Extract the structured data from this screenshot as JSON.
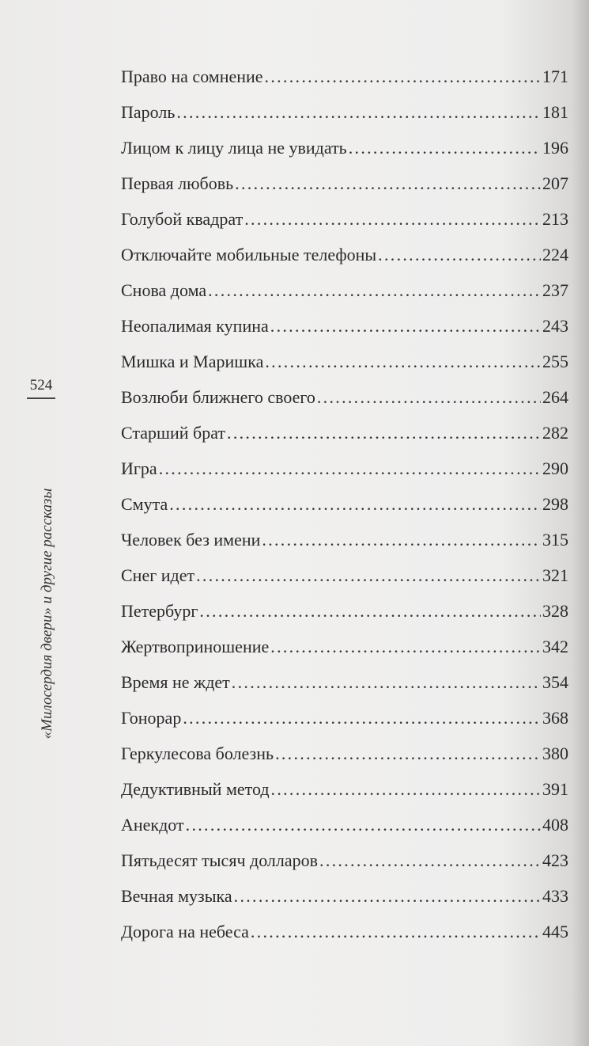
{
  "page_number": "524",
  "running_title": "«Милосердия двери» и другие рассказы",
  "toc": [
    {
      "title": "Право на сомнение",
      "page": "171"
    },
    {
      "title": "Пароль",
      "page": "181"
    },
    {
      "title": "Лицом к лицу лица не увидать",
      "page": "196"
    },
    {
      "title": "Первая любовь",
      "page": "207"
    },
    {
      "title": "Голубой квадрат",
      "page": "213"
    },
    {
      "title": "Отключайте мобильные телефоны",
      "page": "224"
    },
    {
      "title": "Снова дома",
      "page": "237"
    },
    {
      "title": "Неопалимая купина",
      "page": "243"
    },
    {
      "title": "Мишка и Маришка",
      "page": "255"
    },
    {
      "title": "Возлюби ближнего своего",
      "page": "264"
    },
    {
      "title": "Старший брат",
      "page": "282"
    },
    {
      "title": "Игра",
      "page": "290"
    },
    {
      "title": "Смута",
      "page": "298"
    },
    {
      "title": "Человек без имени",
      "page": "315"
    },
    {
      "title": "Снег идет",
      "page": "321"
    },
    {
      "title": "Петербург",
      "page": "328"
    },
    {
      "title": "Жертвоприношение",
      "page": "342"
    },
    {
      "title": "Время не ждет",
      "page": "354"
    },
    {
      "title": "Гонорар",
      "page": "368"
    },
    {
      "title": "Геркулесова болезнь",
      "page": "380"
    },
    {
      "title": "Дедуктивный метод",
      "page": "391"
    },
    {
      "title": "Анекдот",
      "page": "408"
    },
    {
      "title": "Пятьдесят тысяч долларов",
      "page": "423"
    },
    {
      "title": "Вечная музыка",
      "page": "433"
    },
    {
      "title": "Дорога на небеса",
      "page": "445"
    }
  ]
}
